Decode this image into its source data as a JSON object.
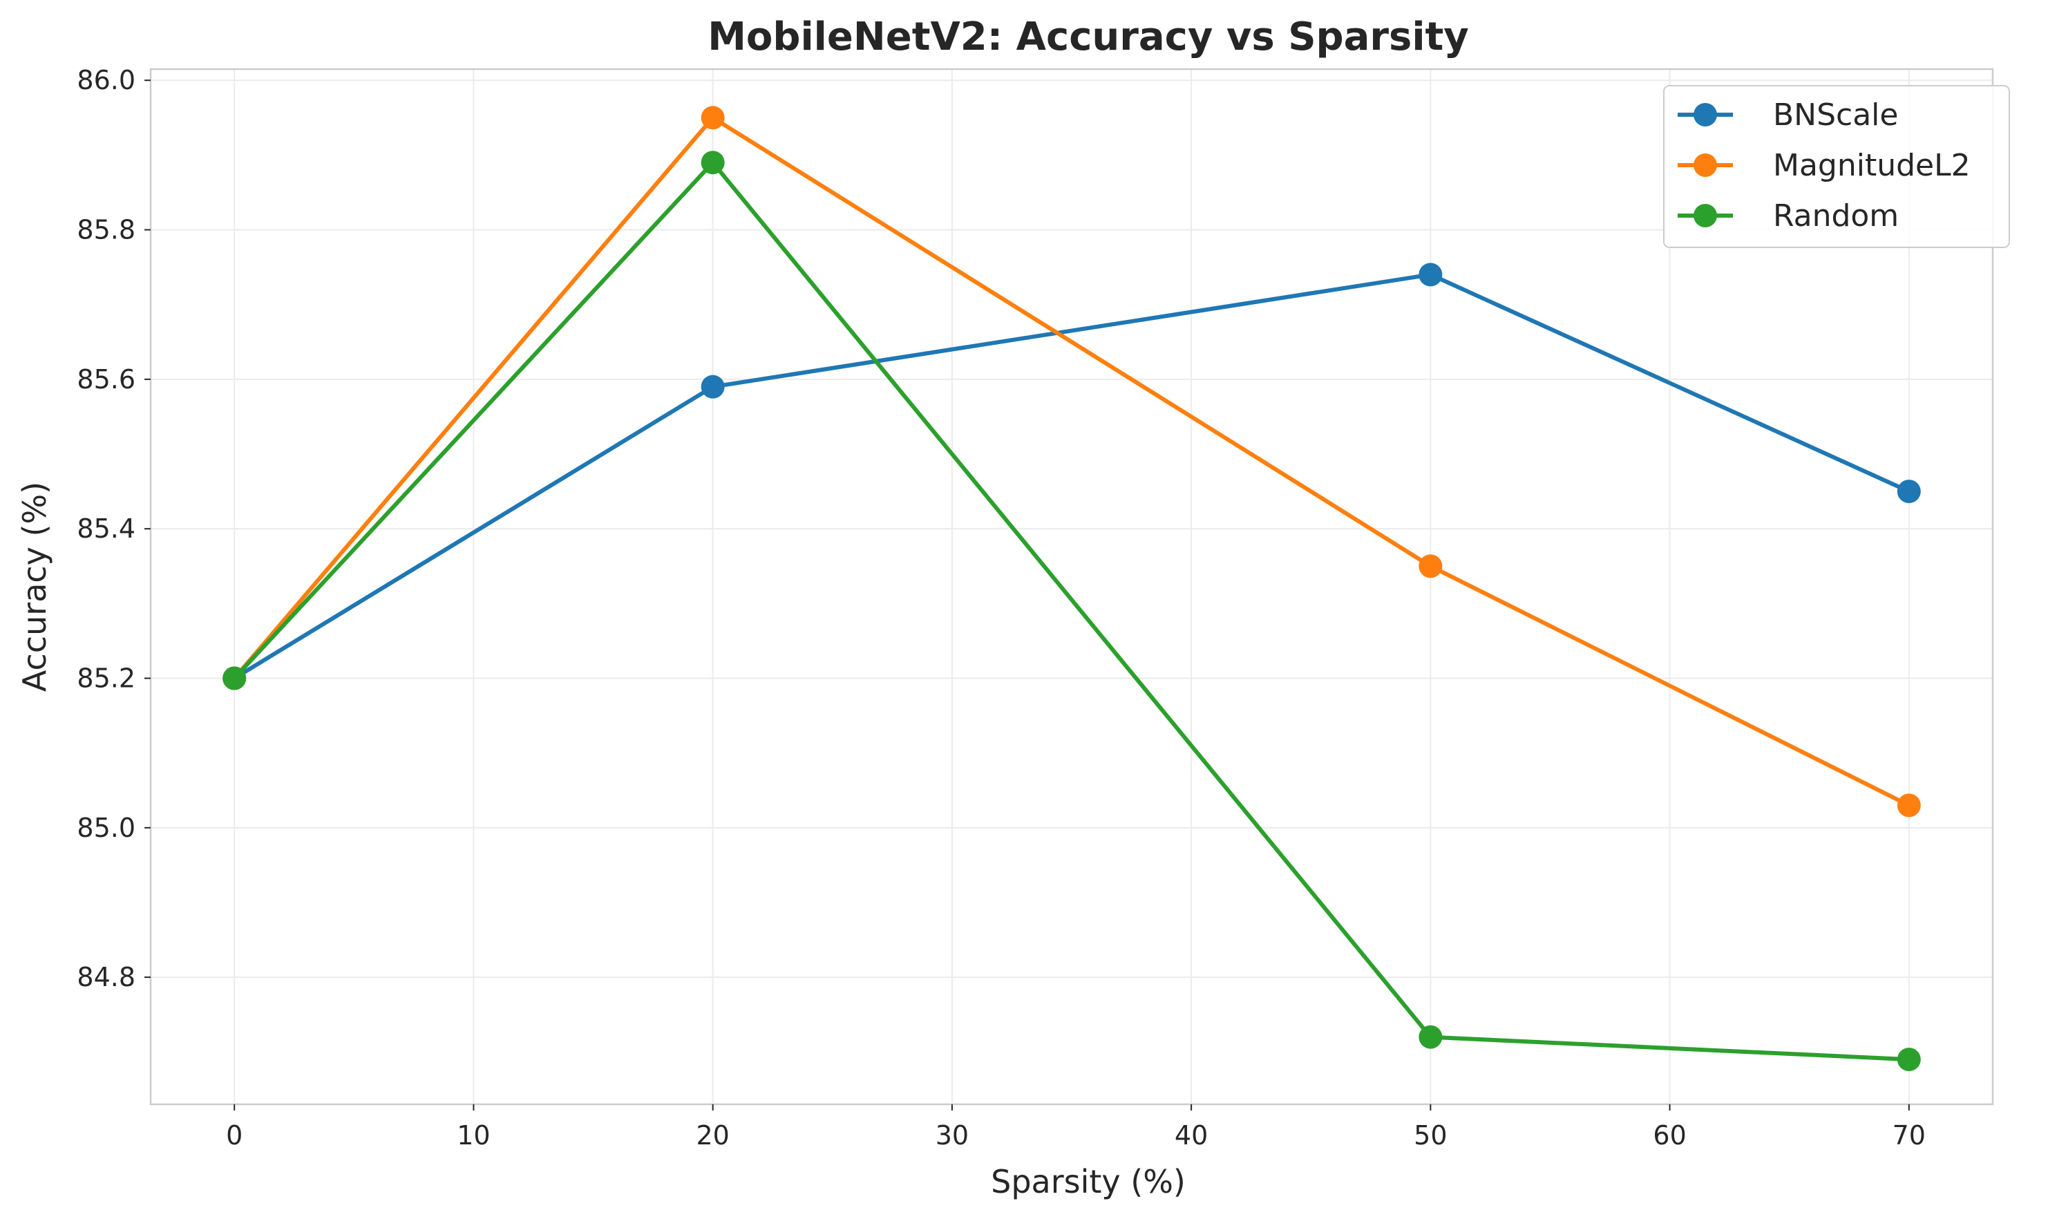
{
  "chart_data": {
    "type": "line",
    "title": "MobileNetV2: Accuracy vs Sparsity",
    "xlabel": "Sparsity (%)",
    "ylabel": "Accuracy (%)",
    "x": [
      0,
      20,
      50,
      70
    ],
    "xlim": [
      -3.5,
      73.5
    ],
    "ylim": [
      84.63,
      86.015
    ],
    "xticks": [
      0,
      10,
      20,
      30,
      40,
      50,
      60,
      70
    ],
    "yticks": [
      84.8,
      85.0,
      85.2,
      85.4,
      85.6,
      85.8,
      86.0
    ],
    "grid": true,
    "legend_position": "top-right",
    "series": [
      {
        "name": "BNScale",
        "color": "#1f77b4",
        "values": [
          85.2,
          85.59,
          85.74,
          85.45
        ]
      },
      {
        "name": "MagnitudeL2",
        "color": "#ff7f0e",
        "values": [
          85.2,
          85.95,
          85.35,
          85.03
        ]
      },
      {
        "name": "Random",
        "color": "#2ca02c",
        "values": [
          85.2,
          85.89,
          84.72,
          84.69
        ]
      }
    ]
  }
}
